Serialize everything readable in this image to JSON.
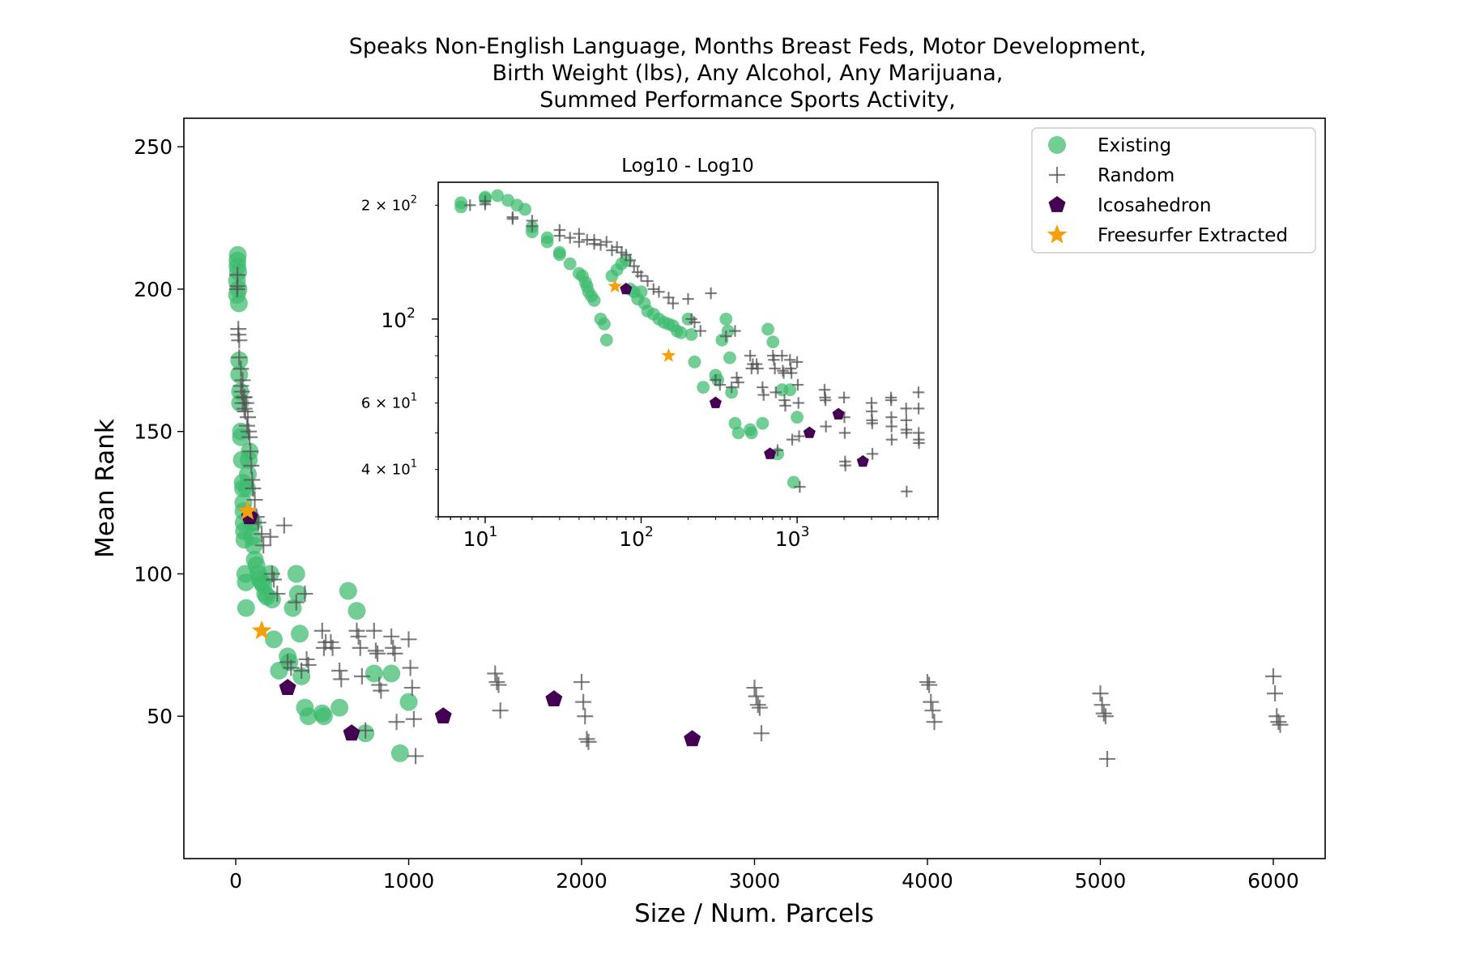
{
  "chart_data": {
    "type": "scatter",
    "title_lines": [
      "Speaks Non-English Language, Months Breast Feds, Motor Development,",
      "Birth Weight (lbs), Any Alcohol, Any Marijuana,",
      "Summed Performance Sports Activity,"
    ],
    "xlabel": "Size / Num. Parcels",
    "ylabel": "Mean Rank",
    "xlim": [
      -300,
      6300
    ],
    "ylim": [
      0,
      260
    ],
    "xticks": [
      0,
      1000,
      2000,
      3000,
      4000,
      5000,
      6000
    ],
    "xtick_labels": [
      "0",
      "1000",
      "2000",
      "3000",
      "4000",
      "5000",
      "6000"
    ],
    "yticks": [
      50,
      100,
      150,
      200,
      250
    ],
    "ytick_labels": [
      "50",
      "100",
      "150",
      "200",
      "250"
    ],
    "legend_position": "top-right",
    "series": [
      {
        "name": "Existing",
        "marker": "circle",
        "color": "#3dbb6e",
        "points": [
          [
            7,
            198
          ],
          [
            7,
            203
          ],
          [
            10,
            208
          ],
          [
            10,
            210
          ],
          [
            12,
            212
          ],
          [
            14,
            206
          ],
          [
            16,
            200
          ],
          [
            18,
            195
          ],
          [
            20,
            175
          ],
          [
            20,
            170
          ],
          [
            25,
            164
          ],
          [
            25,
            160
          ],
          [
            30,
            150
          ],
          [
            30,
            148
          ],
          [
            35,
            140
          ],
          [
            40,
            132
          ],
          [
            42,
            130
          ],
          [
            44,
            125
          ],
          [
            45,
            122
          ],
          [
            46,
            118
          ],
          [
            48,
            115
          ],
          [
            50,
            112
          ],
          [
            55,
            100
          ],
          [
            58,
            97
          ],
          [
            60,
            88
          ],
          [
            65,
            130
          ],
          [
            70,
            135
          ],
          [
            75,
            140
          ],
          [
            80,
            143
          ],
          [
            85,
            120
          ],
          [
            90,
            118
          ],
          [
            95,
            113
          ],
          [
            100,
            118
          ],
          [
            105,
            110
          ],
          [
            110,
            105
          ],
          [
            120,
            103
          ],
          [
            130,
            100
          ],
          [
            140,
            98
          ],
          [
            150,
            97
          ],
          [
            160,
            96
          ],
          [
            170,
            93
          ],
          [
            180,
            92
          ],
          [
            200,
            100
          ],
          [
            210,
            91
          ],
          [
            220,
            77
          ],
          [
            250,
            66
          ],
          [
            300,
            71
          ],
          [
            310,
            69
          ],
          [
            330,
            88
          ],
          [
            350,
            100
          ],
          [
            360,
            93
          ],
          [
            370,
            79
          ],
          [
            380,
            64
          ],
          [
            400,
            53
          ],
          [
            420,
            50
          ],
          [
            500,
            51
          ],
          [
            510,
            50
          ],
          [
            600,
            53
          ],
          [
            650,
            94
          ],
          [
            700,
            87
          ],
          [
            750,
            44
          ],
          [
            800,
            65
          ],
          [
            900,
            65
          ],
          [
            950,
            37
          ],
          [
            1000,
            55
          ]
        ]
      },
      {
        "name": "Random",
        "marker": "plus",
        "color": "#555555",
        "points": [
          [
            8,
            200
          ],
          [
            10,
            205
          ],
          [
            10,
            201
          ],
          [
            15,
            186
          ],
          [
            15,
            184
          ],
          [
            20,
            182
          ],
          [
            20,
            176
          ],
          [
            30,
            172
          ],
          [
            30,
            166
          ],
          [
            35,
            164
          ],
          [
            40,
            168
          ],
          [
            40,
            160
          ],
          [
            45,
            162
          ],
          [
            50,
            162
          ],
          [
            50,
            158
          ],
          [
            55,
            157
          ],
          [
            60,
            160
          ],
          [
            65,
            152
          ],
          [
            70,
            155
          ],
          [
            75,
            150
          ],
          [
            80,
            148
          ],
          [
            85,
            143
          ],
          [
            90,
            138
          ],
          [
            95,
            133
          ],
          [
            100,
            130
          ],
          [
            110,
            126
          ],
          [
            120,
            120
          ],
          [
            130,
            118
          ],
          [
            150,
            114
          ],
          [
            160,
            110
          ],
          [
            200,
            113
          ],
          [
            210,
            100
          ],
          [
            220,
            98
          ],
          [
            240,
            93
          ],
          [
            280,
            117
          ],
          [
            300,
            69
          ],
          [
            320,
            67
          ],
          [
            350,
            90
          ],
          [
            380,
            66
          ],
          [
            400,
            93
          ],
          [
            410,
            70
          ],
          [
            420,
            68
          ],
          [
            500,
            80
          ],
          [
            510,
            74
          ],
          [
            520,
            76
          ],
          [
            550,
            76
          ],
          [
            560,
            74
          ],
          [
            600,
            66
          ],
          [
            610,
            63
          ],
          [
            700,
            80
          ],
          [
            710,
            78
          ],
          [
            720,
            74
          ],
          [
            730,
            64
          ],
          [
            750,
            45
          ],
          [
            800,
            80
          ],
          [
            810,
            73
          ],
          [
            820,
            72
          ],
          [
            830,
            61
          ],
          [
            840,
            59
          ],
          [
            900,
            78
          ],
          [
            910,
            74
          ],
          [
            920,
            72
          ],
          [
            930,
            48
          ],
          [
            1000,
            77
          ],
          [
            1010,
            67
          ],
          [
            1020,
            60
          ],
          [
            1030,
            49
          ],
          [
            1040,
            36
          ],
          [
            1500,
            65
          ],
          [
            1510,
            62
          ],
          [
            1520,
            61
          ],
          [
            1530,
            52
          ],
          [
            2000,
            62
          ],
          [
            2010,
            55
          ],
          [
            2020,
            50
          ],
          [
            2030,
            42
          ],
          [
            2040,
            41
          ],
          [
            3000,
            60
          ],
          [
            3010,
            57
          ],
          [
            3020,
            54
          ],
          [
            3030,
            53
          ],
          [
            3040,
            44
          ],
          [
            4000,
            62
          ],
          [
            4010,
            61
          ],
          [
            4020,
            55
          ],
          [
            4030,
            52
          ],
          [
            4040,
            48
          ],
          [
            5000,
            58
          ],
          [
            5010,
            54
          ],
          [
            5020,
            51
          ],
          [
            5030,
            50
          ],
          [
            5040,
            35
          ],
          [
            6000,
            64
          ],
          [
            6010,
            58
          ],
          [
            6020,
            50
          ],
          [
            6030,
            48
          ],
          [
            6040,
            47
          ]
        ]
      },
      {
        "name": "Icosahedron",
        "marker": "pentagon",
        "color": "#440154",
        "points": [
          [
            80,
            120
          ],
          [
            300,
            60
          ],
          [
            670,
            44
          ],
          [
            1200,
            50
          ],
          [
            1840,
            56
          ],
          [
            2640,
            42
          ]
        ]
      },
      {
        "name": "Freesurfer Extracted",
        "marker": "star",
        "color": "#f5a00b",
        "points": [
          [
            68,
            122
          ],
          [
            150,
            80
          ]
        ]
      }
    ],
    "inset": {
      "title": "Log10 - Log10",
      "xscale": "log",
      "yscale": "log",
      "xlim": [
        5,
        8000
      ],
      "ylim": [
        30,
        230
      ],
      "xtick_labels": [
        "10",
        "10",
        "10"
      ],
      "xtick_exponents": [
        "1",
        "2",
        "3"
      ],
      "ytick_major_label": "10",
      "ytick_major_exponent": "2",
      "ytick_minor_labels": [
        "2 × 10",
        "6 × 10",
        "4 × 10"
      ],
      "ytick_minor_exponents": [
        "2",
        "1",
        "1"
      ]
    }
  }
}
